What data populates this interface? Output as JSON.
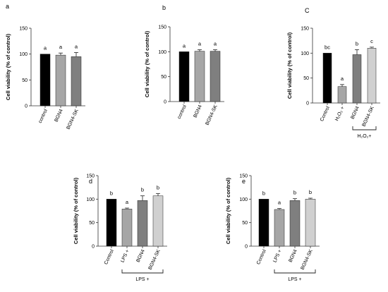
{
  "chart_data": [
    {
      "panel": "a",
      "type": "bar",
      "ylabel": "Cell viability (% of control)",
      "ylim": [
        0,
        150
      ],
      "yticks": [
        0,
        50,
        100,
        150
      ],
      "categories": [
        "control",
        "BGN4",
        "BGN4-SK"
      ],
      "values": [
        100,
        98,
        95
      ],
      "errors": [
        0,
        4,
        8
      ],
      "colors": [
        "#000000",
        "#a6a6a6",
        "#7f7f7f"
      ],
      "significance": [
        "a",
        "a",
        "a"
      ],
      "group_label": ""
    },
    {
      "panel": "b",
      "type": "bar",
      "ylabel": "Cell viability (% of control)",
      "ylim": [
        0,
        150
      ],
      "yticks": [
        0,
        50,
        100,
        150
      ],
      "categories": [
        "control",
        "BGN4",
        "BGN4-SK"
      ],
      "values": [
        100,
        101,
        101
      ],
      "errors": [
        0,
        3,
        3
      ],
      "colors": [
        "#000000",
        "#a6a6a6",
        "#7f7f7f"
      ],
      "significance": [
        "a",
        "a",
        "a"
      ],
      "group_label": ""
    },
    {
      "panel": "C",
      "type": "bar",
      "ylabel": "Cell viability (% of control)",
      "ylim": [
        0,
        150
      ],
      "yticks": [
        0,
        50,
        100,
        150
      ],
      "categories": [
        "Control",
        "H₂O₂ +",
        "BGN4",
        "BGN4-SK"
      ],
      "values": [
        100,
        33,
        97,
        110
      ],
      "errors": [
        0,
        4,
        10,
        2
      ],
      "colors": [
        "#000000",
        "#a6a6a6",
        "#7f7f7f",
        "#d0d0d0"
      ],
      "significance": [
        "bc",
        "a",
        "b",
        "c"
      ],
      "group_label": "H₂O₂+",
      "group_span": [
        2,
        3
      ]
    },
    {
      "panel": "d",
      "type": "bar",
      "ylabel": "Cell viability (% of control)",
      "ylim": [
        0,
        150
      ],
      "yticks": [
        0,
        50,
        100,
        150
      ],
      "categories": [
        "Control",
        "LPS +",
        "BGN4",
        "BGN4-SK"
      ],
      "values": [
        100,
        79,
        97,
        107
      ],
      "errors": [
        0,
        2,
        10,
        5
      ],
      "colors": [
        "#000000",
        "#a6a6a6",
        "#7f7f7f",
        "#d0d0d0"
      ],
      "significance": [
        "b",
        "a",
        "b",
        "b"
      ],
      "group_label": "LPS +",
      "group_span": [
        1,
        3
      ]
    },
    {
      "panel": "e",
      "type": "bar",
      "ylabel": "Cell viability (% of control)",
      "ylim": [
        0,
        150
      ],
      "yticks": [
        0,
        50,
        100,
        150
      ],
      "categories": [
        "Control",
        "LPS +",
        "BGN4",
        "BGN4-SK"
      ],
      "values": [
        100,
        78,
        97,
        100
      ],
      "errors": [
        0,
        2,
        4,
        2
      ],
      "colors": [
        "#000000",
        "#a6a6a6",
        "#7f7f7f",
        "#d0d0d0"
      ],
      "significance": [
        "b",
        "a",
        "b",
        "b"
      ],
      "group_label": "LPS +",
      "group_span": [
        1,
        3
      ]
    }
  ]
}
